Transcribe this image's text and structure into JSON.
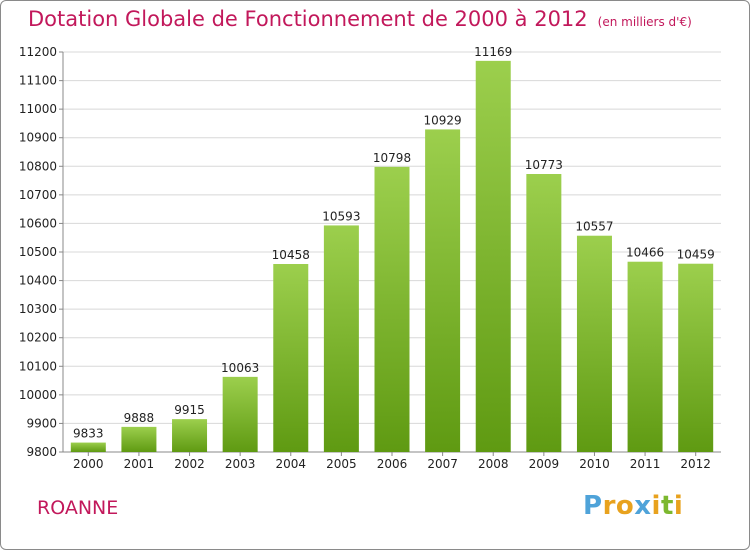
{
  "chart_data": {
    "type": "bar",
    "title": "Dotation Globale de Fonctionnement de 2000 à 2012",
    "subtitle": "(en milliers d'€)",
    "categories": [
      "2000",
      "2001",
      "2002",
      "2003",
      "2004",
      "2005",
      "2006",
      "2007",
      "2008",
      "2009",
      "2010",
      "2011",
      "2012"
    ],
    "values": [
      9833,
      9888,
      9915,
      10063,
      10458,
      10593,
      10798,
      10929,
      11169,
      10773,
      10557,
      10466,
      10459
    ],
    "ylim": [
      9800,
      11200
    ],
    "yticks": [
      9800,
      9900,
      10000,
      10100,
      10200,
      10300,
      10400,
      10500,
      10600,
      10700,
      10800,
      10900,
      11000,
      11100,
      11200
    ],
    "grid": true,
    "bar_color_top": "#9ccf4d",
    "bar_color_bottom": "#5f9a12"
  },
  "footer": {
    "commune": "ROANNE",
    "logo_letters": [
      "P",
      "r",
      "o",
      "x",
      "i",
      "t",
      "i"
    ],
    "logo_colors": [
      "#4fa3d9",
      "#e8a21e",
      "#e8a21e",
      "#4fa3d9",
      "#e8a21e",
      "#7cb82f",
      "#e8a21e"
    ]
  },
  "colors": {
    "title": "#c2185b",
    "grid": "#d8d8d8"
  }
}
